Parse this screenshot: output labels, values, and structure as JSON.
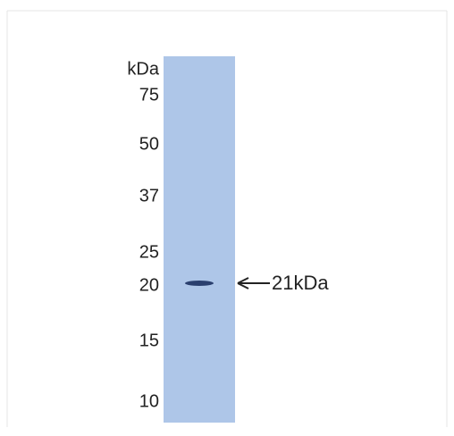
{
  "unit": "kDa",
  "markers": [
    "75",
    "50",
    "37",
    "25",
    "20",
    "15",
    "10"
  ],
  "band_label": "21kDa"
}
